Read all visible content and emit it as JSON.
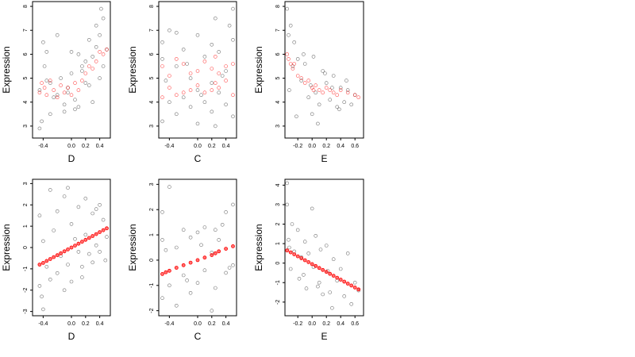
{
  "figure": {
    "background": "#ffffff"
  },
  "colors": {
    "observed": "#000000",
    "fitted": "#ff0000"
  },
  "chart_data": [
    {
      "type": "scatter",
      "xlabel": "D",
      "ylabel": "Expression",
      "xlim": [
        -0.55,
        0.55
      ],
      "ylim": [
        2.5,
        8.2
      ],
      "xticks": [
        -0.4,
        0.0,
        0.2,
        0.4
      ],
      "xtick_labels": [
        "-0.4",
        "0.0",
        "0.2",
        "0.4"
      ],
      "yticks": [
        3,
        4,
        5,
        6,
        7,
        8
      ],
      "ytick_labels": [
        "3",
        "4",
        "5",
        "6",
        "7",
        "8"
      ],
      "series": [
        {
          "role": "observed",
          "marker": "open-circle",
          "x": [
            -0.45,
            -0.42,
            -0.38,
            -0.35,
            -0.3,
            -0.25,
            -0.2,
            -0.15,
            -0.1,
            -0.05,
            0.0,
            0.05,
            0.1,
            0.15,
            0.2,
            0.25,
            0.3,
            0.35,
            0.4,
            0.45,
            0.5,
            -0.45,
            -0.3,
            -0.1,
            0.1,
            0.3,
            0.45,
            -0.2,
            0.0,
            0.2,
            0.4,
            -0.35,
            -0.05,
            0.15,
            0.35,
            -0.4,
            0.05,
            0.25,
            0.42
          ],
          "y": [
            4.5,
            3.2,
            5.5,
            6.1,
            4.8,
            4.2,
            6.8,
            5.0,
            3.9,
            4.6,
            5.2,
            4.1,
            6.0,
            5.5,
            4.8,
            6.6,
            5.9,
            7.2,
            6.8,
            5.5,
            6.2,
            2.9,
            3.5,
            3.6,
            3.8,
            4.0,
            7.5,
            4.3,
            6.1,
            5.7,
            5.0,
            4.9,
            4.4,
            5.3,
            6.3,
            6.5,
            3.7,
            4.7,
            7.9
          ]
        },
        {
          "role": "fitted",
          "marker": "open-circle",
          "x": [
            -0.45,
            -0.42,
            -0.38,
            -0.35,
            -0.3,
            -0.25,
            -0.2,
            -0.15,
            -0.1,
            -0.05,
            0.0,
            0.05,
            0.1,
            0.15,
            0.2,
            0.25,
            0.3,
            0.35,
            0.4,
            0.45,
            0.5
          ],
          "y": [
            4.4,
            4.8,
            4.6,
            4.3,
            4.9,
            4.5,
            4.2,
            4.7,
            4.4,
            4.6,
            4.3,
            4.8,
            4.5,
            4.9,
            5.2,
            5.5,
            5.4,
            5.7,
            6.1,
            6.0,
            6.2
          ]
        }
      ]
    },
    {
      "type": "scatter",
      "xlabel": "C",
      "ylabel": "Expression",
      "xlim": [
        -0.55,
        0.55
      ],
      "ylim": [
        2.5,
        8.2
      ],
      "xticks": [
        -0.4,
        0.0,
        0.2,
        0.4
      ],
      "xtick_labels": [
        "-0.4",
        "0.0",
        "0.2",
        "0.4"
      ],
      "yticks": [
        3,
        4,
        5,
        6,
        7,
        8
      ],
      "ytick_labels": [
        "3",
        "4",
        "5",
        "6",
        "7",
        "8"
      ],
      "series": [
        {
          "role": "observed",
          "marker": "open-circle",
          "x": [
            -0.5,
            -0.5,
            -0.5,
            -0.4,
            -0.4,
            -0.3,
            -0.3,
            -0.3,
            -0.2,
            -0.2,
            -0.1,
            -0.1,
            0.0,
            0.0,
            0.0,
            0.1,
            0.1,
            0.2,
            0.2,
            0.2,
            0.25,
            0.25,
            0.3,
            0.3,
            0.4,
            0.4,
            0.5,
            0.5,
            0.5,
            -0.45,
            -0.15,
            0.05,
            0.35,
            0.45
          ],
          "y": [
            3.2,
            5.8,
            6.5,
            4.0,
            7.0,
            3.5,
            5.5,
            6.9,
            4.2,
            6.2,
            3.8,
            5.0,
            3.1,
            4.5,
            6.8,
            4.0,
            5.9,
            3.6,
            4.8,
            6.4,
            3.0,
            7.5,
            4.4,
            6.1,
            3.9,
            5.3,
            3.4,
            6.6,
            7.9,
            4.9,
            5.6,
            4.3,
            5.1,
            7.2
          ]
        },
        {
          "role": "fitted",
          "marker": "open-circle",
          "x": [
            -0.5,
            -0.5,
            -0.4,
            -0.4,
            -0.3,
            -0.3,
            -0.2,
            -0.2,
            -0.1,
            -0.1,
            0.0,
            0.0,
            0.1,
            0.1,
            0.2,
            0.2,
            0.25,
            0.25,
            0.3,
            0.3,
            0.4,
            0.4,
            0.5,
            0.5
          ],
          "y": [
            4.2,
            5.5,
            4.6,
            5.1,
            4.3,
            5.8,
            4.4,
            5.6,
            4.5,
            5.2,
            4.7,
            5.3,
            4.4,
            5.7,
            4.5,
            5.4,
            4.8,
            5.9,
            4.6,
            5.2,
            4.9,
            5.5,
            4.3,
            5.6
          ]
        }
      ]
    },
    {
      "type": "scatter",
      "xlabel": "E",
      "ylabel": "Expression",
      "xlim": [
        -0.38,
        0.72
      ],
      "ylim": [
        2.5,
        8.2
      ],
      "xticks": [
        -0.2,
        0.0,
        0.2,
        0.4,
        0.6
      ],
      "xtick_labels": [
        "-0.2",
        "0.0",
        "0.2",
        "0.4",
        "0.6"
      ],
      "yticks": [
        3,
        4,
        5,
        6,
        7,
        8
      ],
      "ytick_labels": [
        "3",
        "4",
        "5",
        "6",
        "7",
        "8"
      ],
      "series": [
        {
          "role": "observed",
          "marker": "open-circle",
          "x": [
            -0.35,
            -0.33,
            -0.3,
            -0.27,
            -0.25,
            -0.2,
            -0.15,
            -0.1,
            -0.05,
            0.0,
            0.02,
            0.05,
            0.1,
            0.15,
            0.2,
            0.25,
            0.3,
            0.35,
            0.4,
            0.45,
            0.5,
            0.55,
            0.6,
            -0.32,
            -0.22,
            -0.12,
            -0.02,
            0.08,
            0.18,
            0.28,
            0.38,
            0.48
          ],
          "y": [
            7.9,
            6.8,
            7.2,
            5.5,
            6.5,
            5.8,
            4.9,
            5.6,
            4.2,
            3.5,
            5.9,
            4.4,
            3.9,
            5.3,
            4.8,
            4.1,
            5.1,
            3.8,
            4.6,
            4.0,
            4.5,
            3.9,
            4.3,
            4.5,
            3.4,
            6.0,
            4.7,
            3.1,
            5.2,
            4.6,
            3.7,
            4.9
          ]
        },
        {
          "role": "fitted",
          "marker": "open-circle",
          "x": [
            -0.35,
            -0.33,
            -0.3,
            -0.27,
            -0.25,
            -0.2,
            -0.15,
            -0.1,
            -0.05,
            0.0,
            0.02,
            0.05,
            0.1,
            0.15,
            0.2,
            0.25,
            0.3,
            0.35,
            0.4,
            0.5,
            0.6,
            0.65
          ],
          "y": [
            6.0,
            5.8,
            5.6,
            5.4,
            5.6,
            5.1,
            5.0,
            4.8,
            4.9,
            4.6,
            4.5,
            4.7,
            4.5,
            4.4,
            4.6,
            4.5,
            4.4,
            4.3,
            4.5,
            4.4,
            4.3,
            4.2
          ]
        }
      ]
    },
    {
      "type": "scatter",
      "xlabel": "D",
      "ylabel": "Expression",
      "xlim": [
        -0.55,
        0.55
      ],
      "ylim": [
        -3.2,
        3.2
      ],
      "xticks": [
        -0.4,
        0.0,
        0.2,
        0.4
      ],
      "xtick_labels": [
        "-0.4",
        "0.0",
        "0.2",
        "0.4"
      ],
      "yticks": [
        -3,
        -2,
        -1,
        0,
        1,
        2,
        3
      ],
      "ytick_labels": [
        "-3",
        "-2",
        "-1",
        "0",
        "1",
        "2",
        "3"
      ],
      "series": [
        {
          "role": "observed",
          "marker": "open-circle",
          "x": [
            -0.45,
            -0.45,
            -0.4,
            -0.4,
            -0.35,
            -0.3,
            -0.3,
            -0.25,
            -0.2,
            -0.2,
            -0.15,
            -0.1,
            -0.1,
            -0.05,
            0.0,
            0.0,
            0.05,
            0.1,
            0.1,
            0.15,
            0.2,
            0.2,
            0.25,
            0.3,
            0.3,
            0.35,
            0.4,
            0.4,
            0.45,
            0.5,
            -0.42,
            -0.05,
            0.15,
            0.35,
            0.48
          ],
          "y": [
            -1.8,
            1.5,
            -2.9,
            0.3,
            -0.9,
            2.7,
            -1.5,
            0.8,
            -1.2,
            1.7,
            -0.4,
            -2.0,
            2.4,
            -0.8,
            1.1,
            -1.6,
            0.4,
            -0.2,
            1.9,
            -0.9,
            0.6,
            2.3,
            -0.3,
            1.6,
            -0.7,
            0.1,
            2.0,
            -0.2,
            1.3,
            0.5,
            -2.3,
            2.8,
            -1.4,
            1.8,
            -0.6
          ]
        },
        {
          "role": "fitted",
          "marker": "filled-circle",
          "x": [
            -0.45,
            -0.4,
            -0.35,
            -0.3,
            -0.25,
            -0.2,
            -0.15,
            -0.1,
            -0.05,
            0.0,
            0.05,
            0.1,
            0.15,
            0.2,
            0.25,
            0.3,
            0.35,
            0.4,
            0.45,
            0.5
          ],
          "y": [
            -0.8,
            -0.72,
            -0.63,
            -0.54,
            -0.45,
            -0.36,
            -0.27,
            -0.18,
            -0.09,
            0.0,
            0.09,
            0.18,
            0.27,
            0.36,
            0.45,
            0.54,
            0.63,
            0.72,
            0.81,
            0.9
          ]
        }
      ]
    },
    {
      "type": "scatter",
      "xlabel": "C",
      "ylabel": "Expression",
      "xlim": [
        -0.55,
        0.55
      ],
      "ylim": [
        -2.2,
        3.2
      ],
      "xticks": [
        -0.4,
        0.0,
        0.2,
        0.4
      ],
      "xtick_labels": [
        "-0.4",
        "0.0",
        "0.2",
        "0.4"
      ],
      "yticks": [
        -2,
        -1,
        0,
        1,
        2,
        3
      ],
      "ytick_labels": [
        "-2",
        "-1",
        "0",
        "1",
        "2",
        "3"
      ],
      "series": [
        {
          "role": "observed",
          "marker": "open-circle",
          "x": [
            -0.5,
            -0.5,
            -0.5,
            -0.4,
            -0.4,
            -0.3,
            -0.3,
            -0.2,
            -0.2,
            -0.1,
            -0.1,
            0.0,
            0.0,
            0.1,
            0.1,
            0.2,
            0.2,
            0.25,
            0.25,
            0.3,
            0.4,
            0.4,
            0.5,
            0.5,
            -0.45,
            -0.15,
            0.05,
            0.35,
            0.45
          ],
          "y": [
            -1.5,
            0.8,
            1.9,
            -1.0,
            2.9,
            -1.8,
            0.5,
            -0.6,
            1.2,
            -1.3,
            0.9,
            -0.9,
            1.1,
            -0.4,
            1.3,
            -2.0,
            0.3,
            -1.1,
            1.2,
            0.8,
            -0.5,
            1.9,
            -0.2,
            2.2,
            0.4,
            -0.8,
            0.6,
            1.4,
            -0.3
          ]
        },
        {
          "role": "fitted",
          "marker": "filled-circle",
          "x": [
            -0.5,
            -0.45,
            -0.4,
            -0.3,
            -0.2,
            -0.1,
            0.0,
            0.1,
            0.2,
            0.25,
            0.3,
            0.4,
            0.5
          ],
          "y": [
            -0.55,
            -0.48,
            -0.42,
            -0.3,
            -0.2,
            -0.1,
            0.0,
            0.1,
            0.2,
            0.27,
            0.35,
            0.45,
            0.55
          ]
        }
      ]
    },
    {
      "type": "scatter",
      "xlabel": "E",
      "ylabel": "Expression",
      "xlim": [
        -0.38,
        0.72
      ],
      "ylim": [
        -2.7,
        4.3
      ],
      "xticks": [
        -0.2,
        0.0,
        0.2,
        0.4,
        0.6
      ],
      "xtick_labels": [
        "-0.2",
        "0.0",
        "0.2",
        "0.4",
        "0.6"
      ],
      "yticks": [
        -2,
        -1,
        0,
        1,
        2,
        3,
        4
      ],
      "ytick_labels": [
        "-2",
        "-1",
        "0",
        "1",
        "2",
        "3",
        "4"
      ],
      "series": [
        {
          "role": "observed",
          "marker": "open-circle",
          "x": [
            -0.35,
            -0.35,
            -0.33,
            -0.3,
            -0.28,
            -0.25,
            -0.2,
            -0.18,
            -0.15,
            -0.1,
            -0.08,
            -0.05,
            0.0,
            0.02,
            0.05,
            0.1,
            0.12,
            0.15,
            0.2,
            0.22,
            0.25,
            0.3,
            0.35,
            0.4,
            0.45,
            0.5,
            0.55,
            0.6,
            0.65,
            -0.32,
            -0.12,
            0.08,
            0.28
          ],
          "y": [
            3.0,
            4.1,
            1.2,
            -0.3,
            2.0,
            0.6,
            1.7,
            -0.8,
            0.3,
            1.1,
            -1.3,
            0.5,
            2.8,
            -0.2,
            1.4,
            -1.0,
            0.7,
            -1.6,
            0.9,
            -0.4,
            -1.5,
            0.2,
            -0.9,
            -0.3,
            -1.7,
            0.5,
            -2.1,
            -1.0,
            -1.4,
            0.8,
            -0.6,
            -1.2,
            -2.3
          ]
        },
        {
          "role": "fitted",
          "marker": "filled-circle",
          "x": [
            -0.35,
            -0.3,
            -0.25,
            -0.2,
            -0.15,
            -0.1,
            -0.05,
            0.0,
            0.05,
            0.1,
            0.15,
            0.2,
            0.25,
            0.3,
            0.35,
            0.4,
            0.45,
            0.5,
            0.55,
            0.6,
            0.65
          ],
          "y": [
            0.65,
            0.55,
            0.45,
            0.35,
            0.25,
            0.15,
            0.05,
            -0.05,
            -0.15,
            -0.25,
            -0.35,
            -0.45,
            -0.55,
            -0.65,
            -0.75,
            -0.85,
            -0.95,
            -1.05,
            -1.15,
            -1.25,
            -1.35
          ]
        }
      ]
    }
  ]
}
